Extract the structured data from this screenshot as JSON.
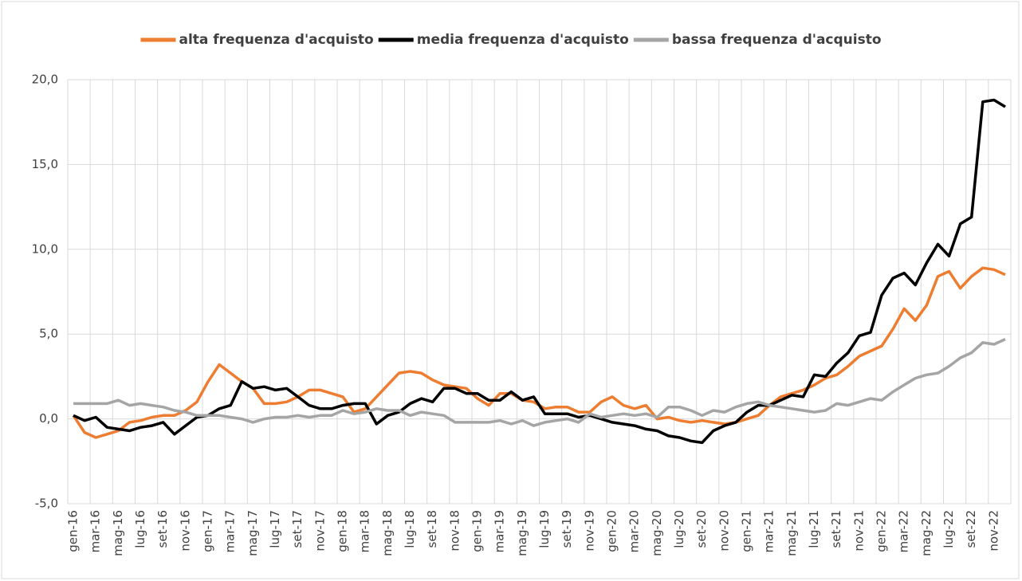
{
  "chart_data": {
    "type": "line",
    "categories": [
      "gen-16",
      null,
      "mar-16",
      null,
      "mag-16",
      null,
      "lug-16",
      null,
      "set-16",
      null,
      "nov-16",
      null,
      "gen-17",
      null,
      "mar-17",
      null,
      "mag-17",
      null,
      "lug-17",
      null,
      "set-17",
      null,
      "nov-17",
      null,
      "gen-18",
      null,
      "mar-18",
      null,
      "mag-18",
      null,
      "lug-18",
      null,
      "set-18",
      null,
      "nov-18",
      null,
      "gen-19",
      null,
      "mar-19",
      null,
      "mag-19",
      null,
      "lug-19",
      null,
      "set-19",
      null,
      "nov-19",
      null,
      "gen-20",
      null,
      "mar-20",
      null,
      "mag-20",
      null,
      "lug-20",
      null,
      "set-20",
      null,
      "nov-20",
      null,
      "gen-21",
      null,
      "mar-21",
      null,
      "mag-21",
      null,
      "lug-21",
      null,
      "set-21",
      null,
      "nov-21",
      null,
      "gen-22",
      null,
      "mar-22",
      null,
      "mag-22",
      null,
      "lug-22",
      null,
      "set-22",
      null,
      "nov-22",
      null
    ],
    "series": [
      {
        "name": "alta frequenza d'acquisto",
        "color": "#ed7d31",
        "values": [
          0.2,
          -0.8,
          -1.1,
          -0.9,
          -0.7,
          -0.2,
          -0.1,
          0.1,
          0.2,
          0.2,
          0.5,
          1.0,
          2.2,
          3.2,
          2.7,
          2.2,
          1.8,
          0.9,
          0.9,
          1.0,
          1.3,
          1.7,
          1.7,
          1.5,
          1.3,
          0.4,
          0.6,
          1.3,
          2.0,
          2.7,
          2.8,
          2.7,
          2.3,
          2.0,
          1.9,
          1.8,
          1.2,
          0.8,
          1.5,
          1.5,
          1.1,
          1.0,
          0.6,
          0.7,
          0.7,
          0.4,
          0.4,
          1.0,
          1.3,
          0.8,
          0.6,
          0.8,
          0.0,
          0.1,
          -0.1,
          -0.2,
          -0.1,
          -0.2,
          -0.3,
          -0.2,
          0.0,
          0.2,
          0.8,
          1.3,
          1.5,
          1.7,
          2.0,
          2.4,
          2.6,
          3.1,
          3.7,
          4.0,
          4.3,
          5.3,
          6.5,
          5.8,
          6.7,
          8.4,
          8.7,
          7.7,
          8.4,
          8.9,
          8.8,
          8.5
        ]
      },
      {
        "name": "media frequenza d'acquisto",
        "color": "#000000",
        "values": [
          0.2,
          -0.1,
          0.1,
          -0.5,
          -0.6,
          -0.7,
          -0.5,
          -0.4,
          -0.2,
          -0.9,
          -0.4,
          0.1,
          0.2,
          0.6,
          0.8,
          2.2,
          1.8,
          1.9,
          1.7,
          1.8,
          1.3,
          0.8,
          0.6,
          0.6,
          0.8,
          0.9,
          0.9,
          -0.3,
          0.2,
          0.4,
          0.9,
          1.2,
          1.0,
          1.8,
          1.8,
          1.5,
          1.5,
          1.1,
          1.1,
          1.6,
          1.1,
          1.3,
          0.3,
          0.3,
          0.3,
          0.1,
          0.2,
          0.0,
          -0.2,
          -0.3,
          -0.4,
          -0.6,
          -0.7,
          -1.0,
          -1.1,
          -1.3,
          -1.4,
          -0.7,
          -0.4,
          -0.2,
          0.4,
          0.8,
          0.8,
          1.1,
          1.4,
          1.3,
          2.6,
          2.5,
          3.3,
          3.9,
          4.9,
          5.1,
          7.3,
          8.3,
          8.6,
          7.9,
          9.2,
          10.3,
          9.6,
          11.5,
          11.9,
          18.7,
          18.8,
          18.4
        ]
      },
      {
        "name": "bassa frequenza d'acquisto",
        "color": "#a5a5a5",
        "values": [
          0.9,
          0.9,
          0.9,
          0.9,
          1.1,
          0.8,
          0.9,
          0.8,
          0.7,
          0.5,
          0.4,
          0.2,
          0.2,
          0.2,
          0.1,
          0.0,
          -0.2,
          0.0,
          0.1,
          0.1,
          0.2,
          0.1,
          0.2,
          0.2,
          0.5,
          0.3,
          0.4,
          0.6,
          0.5,
          0.5,
          0.2,
          0.4,
          0.3,
          0.2,
          -0.2,
          -0.2,
          -0.2,
          -0.2,
          -0.1,
          -0.3,
          -0.1,
          -0.4,
          -0.2,
          -0.1,
          0.0,
          -0.2,
          0.3,
          0.1,
          0.2,
          0.3,
          0.2,
          0.3,
          0.1,
          0.7,
          0.7,
          0.5,
          0.2,
          0.5,
          0.4,
          0.7,
          0.9,
          1.0,
          0.8,
          0.7,
          0.6,
          0.5,
          0.4,
          0.5,
          0.9,
          0.8,
          1.0,
          1.2,
          1.1,
          1.6,
          2.0,
          2.4,
          2.6,
          2.7,
          3.1,
          3.6,
          3.9,
          4.5,
          4.4,
          4.7
        ]
      }
    ],
    "ylim": [
      -5,
      20
    ],
    "yticks": [
      {
        "value": -5,
        "label": "-5,0"
      },
      {
        "value": 0,
        "label": "0,0"
      },
      {
        "value": 5,
        "label": "5,0"
      },
      {
        "value": 10,
        "label": "10,0"
      },
      {
        "value": 15,
        "label": "15,0"
      },
      {
        "value": 20,
        "label": "20,0"
      }
    ],
    "grid": true,
    "legend": "top"
  }
}
